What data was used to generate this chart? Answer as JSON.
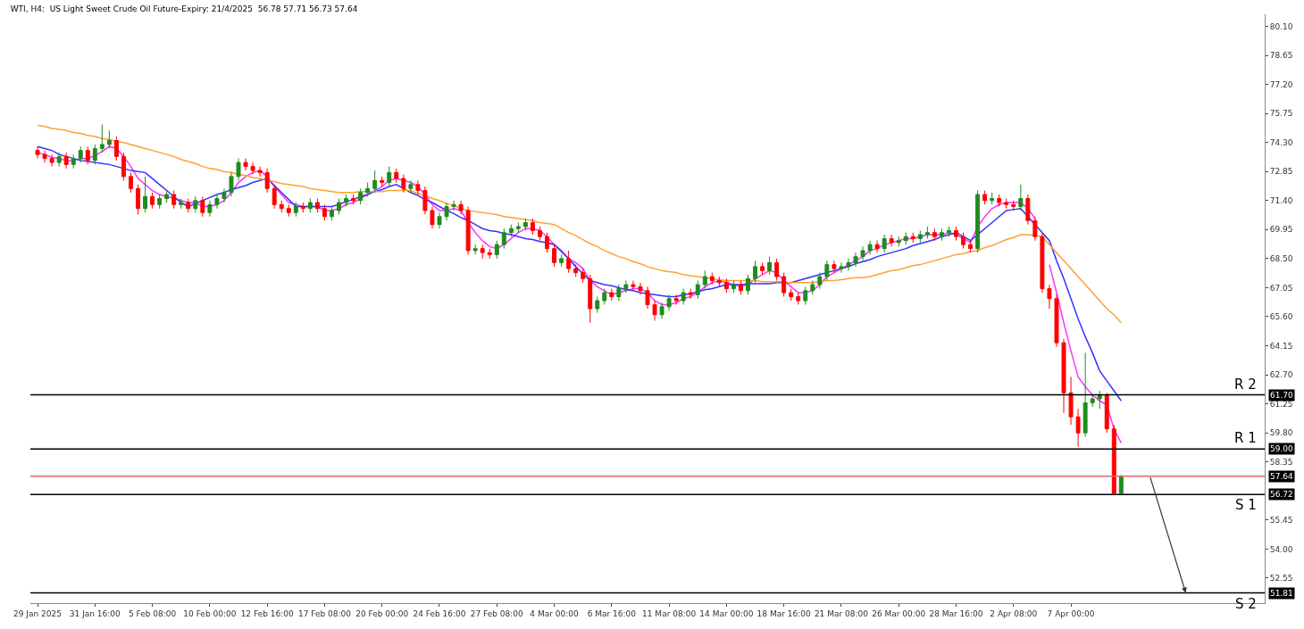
{
  "chart_data": {
    "type": "candlestick",
    "title": "WTI, H4:  US Light Sweet Crude Oil Future-Expiry: 21/4/2025  56.78 57.71 56.73 57.64",
    "categories": [
      "29 Jan 2025",
      null,
      null,
      null,
      null,
      null,
      null,
      null,
      "31 Jan 16:00",
      null,
      null,
      null,
      null,
      null,
      null,
      null,
      "5 Feb 08:00",
      null,
      null,
      null,
      null,
      null,
      null,
      null,
      "10 Feb 00:00",
      null,
      null,
      null,
      null,
      null,
      null,
      null,
      "12 Feb 16:00",
      null,
      null,
      null,
      null,
      null,
      null,
      null,
      "17 Feb 08:00",
      null,
      null,
      null,
      null,
      null,
      null,
      null,
      "20 Feb 00:00",
      null,
      null,
      null,
      null,
      null,
      null,
      null,
      "24 Feb 16:00",
      null,
      null,
      null,
      null,
      null,
      null,
      null,
      "27 Feb 08:00",
      null,
      null,
      null,
      null,
      null,
      null,
      null,
      "4 Mar 00:00",
      null,
      null,
      null,
      null,
      null,
      null,
      null,
      "6 Mar 16:00",
      null,
      null,
      null,
      null,
      null,
      null,
      null,
      "11 Mar 08:00",
      null,
      null,
      null,
      null,
      null,
      null,
      null,
      "14 Mar 00:00",
      null,
      null,
      null,
      null,
      null,
      null,
      null,
      "18 Mar 16:00",
      null,
      null,
      null,
      null,
      null,
      null,
      null,
      "21 Mar 08:00",
      null,
      null,
      null,
      null,
      null,
      null,
      null,
      "26 Mar 00:00",
      null,
      null,
      null,
      null,
      null,
      null,
      null,
      "28 Mar 16:00",
      null,
      null,
      null,
      null,
      null,
      null,
      null,
      "2 Apr 08:00",
      null,
      null,
      null,
      null,
      null,
      null,
      null,
      "7 Apr 00:00",
      null,
      null,
      null,
      null,
      null,
      null,
      null
    ],
    "ohlc": [
      [
        73.9,
        74.1,
        73.5,
        73.7
      ],
      [
        73.7,
        73.9,
        73.3,
        73.5
      ],
      [
        73.5,
        73.7,
        73.1,
        73.3
      ],
      [
        73.3,
        73.8,
        73.1,
        73.6
      ],
      [
        73.6,
        73.8,
        73.0,
        73.2
      ],
      [
        73.2,
        73.7,
        73.0,
        73.5
      ],
      [
        73.5,
        74.1,
        73.3,
        73.9
      ],
      [
        73.9,
        74.1,
        73.2,
        73.4
      ],
      [
        73.4,
        74.2,
        73.2,
        74.0
      ],
      [
        74.0,
        75.2,
        73.8,
        74.2
      ],
      [
        74.2,
        74.9,
        74.0,
        74.4
      ],
      [
        74.4,
        74.6,
        73.4,
        73.6
      ],
      [
        73.6,
        73.8,
        72.4,
        72.6
      ],
      [
        72.6,
        72.8,
        71.8,
        72.0
      ],
      [
        72.0,
        72.2,
        70.7,
        71.0
      ],
      [
        71.0,
        72.6,
        70.8,
        71.6
      ],
      [
        71.6,
        71.8,
        71.0,
        71.2
      ],
      [
        71.2,
        71.7,
        71.0,
        71.5
      ],
      [
        71.5,
        71.9,
        71.3,
        71.7
      ],
      [
        71.7,
        71.9,
        71.0,
        71.2
      ],
      [
        71.2,
        71.5,
        71.0,
        71.3
      ],
      [
        71.3,
        71.5,
        70.8,
        71.0
      ],
      [
        71.0,
        71.6,
        70.8,
        71.4
      ],
      [
        71.4,
        71.6,
        70.6,
        70.8
      ],
      [
        70.8,
        71.4,
        70.6,
        71.2
      ],
      [
        71.2,
        71.7,
        71.0,
        71.5
      ],
      [
        71.5,
        72.0,
        71.3,
        71.8
      ],
      [
        71.8,
        72.8,
        71.6,
        72.6
      ],
      [
        72.6,
        73.5,
        72.4,
        73.3
      ],
      [
        73.3,
        73.5,
        72.9,
        73.1
      ],
      [
        73.1,
        73.3,
        72.7,
        72.9
      ],
      [
        72.9,
        73.1,
        72.6,
        72.8
      ],
      [
        72.8,
        73.0,
        71.8,
        72.0
      ],
      [
        72.0,
        72.2,
        71.0,
        71.2
      ],
      [
        71.2,
        71.4,
        70.8,
        71.0
      ],
      [
        71.0,
        71.2,
        70.6,
        70.8
      ],
      [
        70.8,
        71.3,
        70.6,
        71.1
      ],
      [
        71.1,
        71.3,
        70.8,
        71.0
      ],
      [
        71.0,
        71.5,
        70.8,
        71.3
      ],
      [
        71.3,
        71.5,
        70.8,
        71.0
      ],
      [
        71.0,
        71.2,
        70.4,
        70.6
      ],
      [
        70.6,
        71.1,
        70.4,
        70.9
      ],
      [
        70.9,
        71.5,
        70.7,
        71.3
      ],
      [
        71.3,
        71.7,
        71.1,
        71.5
      ],
      [
        71.5,
        71.7,
        71.2,
        71.4
      ],
      [
        71.4,
        72.0,
        71.2,
        71.8
      ],
      [
        71.8,
        72.3,
        71.6,
        72.0
      ],
      [
        72.0,
        72.9,
        71.8,
        72.4
      ],
      [
        72.4,
        72.6,
        72.1,
        72.3
      ],
      [
        72.3,
        73.1,
        72.1,
        72.8
      ],
      [
        72.8,
        73.0,
        72.3,
        72.5
      ],
      [
        72.5,
        72.7,
        71.8,
        72.0
      ],
      [
        72.0,
        72.4,
        71.8,
        72.2
      ],
      [
        72.2,
        72.4,
        71.7,
        71.9
      ],
      [
        71.9,
        72.1,
        70.7,
        70.9
      ],
      [
        70.9,
        71.1,
        70.0,
        70.2
      ],
      [
        70.2,
        70.8,
        70.0,
        70.6
      ],
      [
        70.6,
        71.3,
        70.4,
        71.1
      ],
      [
        71.1,
        71.4,
        70.9,
        71.2
      ],
      [
        71.2,
        71.4,
        70.7,
        70.9
      ],
      [
        70.9,
        71.1,
        68.7,
        68.9
      ],
      [
        68.9,
        69.2,
        68.7,
        69.0
      ],
      [
        69.0,
        69.2,
        68.5,
        68.8
      ],
      [
        68.8,
        69.0,
        68.5,
        68.7
      ],
      [
        68.7,
        69.4,
        68.5,
        69.2
      ],
      [
        69.2,
        70.0,
        69.0,
        69.8
      ],
      [
        69.8,
        70.2,
        69.6,
        70.0
      ],
      [
        70.0,
        70.3,
        69.8,
        70.1
      ],
      [
        70.1,
        70.5,
        69.9,
        70.3
      ],
      [
        70.3,
        70.5,
        69.7,
        69.9
      ],
      [
        69.9,
        70.1,
        69.4,
        69.6
      ],
      [
        69.6,
        69.8,
        68.8,
        69.0
      ],
      [
        69.0,
        69.2,
        68.1,
        68.3
      ],
      [
        68.3,
        68.7,
        68.1,
        68.5
      ],
      [
        68.5,
        68.9,
        67.8,
        68.0
      ],
      [
        68.0,
        68.2,
        67.6,
        67.8
      ],
      [
        67.8,
        68.0,
        67.3,
        67.5
      ],
      [
        67.5,
        67.7,
        65.3,
        66.0
      ],
      [
        66.0,
        66.6,
        65.8,
        66.4
      ],
      [
        66.4,
        67.0,
        66.2,
        66.8
      ],
      [
        66.8,
        67.0,
        66.4,
        66.6
      ],
      [
        66.6,
        67.2,
        66.4,
        67.0
      ],
      [
        67.0,
        67.4,
        66.8,
        67.2
      ],
      [
        67.2,
        67.4,
        66.9,
        67.1
      ],
      [
        67.1,
        67.3,
        66.7,
        66.9
      ],
      [
        66.9,
        67.1,
        66.0,
        66.2
      ],
      [
        66.2,
        66.4,
        65.4,
        65.7
      ],
      [
        65.7,
        66.3,
        65.5,
        66.1
      ],
      [
        66.1,
        66.7,
        65.9,
        66.5
      ],
      [
        66.5,
        66.7,
        66.2,
        66.4
      ],
      [
        66.4,
        67.0,
        66.2,
        66.8
      ],
      [
        66.8,
        67.0,
        66.5,
        66.7
      ],
      [
        66.7,
        67.4,
        66.5,
        67.2
      ],
      [
        67.2,
        67.9,
        67.0,
        67.6
      ],
      [
        67.6,
        67.8,
        67.2,
        67.4
      ],
      [
        67.4,
        67.6,
        67.1,
        67.3
      ],
      [
        67.3,
        67.5,
        66.8,
        67.0
      ],
      [
        67.0,
        67.4,
        66.8,
        67.2
      ],
      [
        67.2,
        67.4,
        66.7,
        66.9
      ],
      [
        66.9,
        67.7,
        66.7,
        67.5
      ],
      [
        67.5,
        68.4,
        67.3,
        68.1
      ],
      [
        68.1,
        68.3,
        67.7,
        67.9
      ],
      [
        67.9,
        68.6,
        67.7,
        68.3
      ],
      [
        68.3,
        68.5,
        67.4,
        67.6
      ],
      [
        67.6,
        67.8,
        66.6,
        66.8
      ],
      [
        66.8,
        67.0,
        66.4,
        66.6
      ],
      [
        66.6,
        66.8,
        66.2,
        66.4
      ],
      [
        66.4,
        67.1,
        66.2,
        66.9
      ],
      [
        66.9,
        67.4,
        66.7,
        67.2
      ],
      [
        67.2,
        67.8,
        67.0,
        67.6
      ],
      [
        67.6,
        68.4,
        67.4,
        68.2
      ],
      [
        68.2,
        68.4,
        67.8,
        68.0
      ],
      [
        68.0,
        68.3,
        67.8,
        68.1
      ],
      [
        68.1,
        68.5,
        67.9,
        68.3
      ],
      [
        68.3,
        68.8,
        68.1,
        68.6
      ],
      [
        68.6,
        69.1,
        68.4,
        68.9
      ],
      [
        68.9,
        69.4,
        68.7,
        69.2
      ],
      [
        69.2,
        69.4,
        68.8,
        69.0
      ],
      [
        69.0,
        69.7,
        68.8,
        69.5
      ],
      [
        69.5,
        69.7,
        69.1,
        69.3
      ],
      [
        69.3,
        69.6,
        69.1,
        69.4
      ],
      [
        69.4,
        69.8,
        69.2,
        69.6
      ],
      [
        69.6,
        69.8,
        69.3,
        69.5
      ],
      [
        69.5,
        69.9,
        69.3,
        69.7
      ],
      [
        69.7,
        70.1,
        69.5,
        69.8
      ],
      [
        69.8,
        70.0,
        69.4,
        69.6
      ],
      [
        69.6,
        70.0,
        69.4,
        69.8
      ],
      [
        69.8,
        70.1,
        69.6,
        69.9
      ],
      [
        69.9,
        70.1,
        69.4,
        69.6
      ],
      [
        69.6,
        69.8,
        69.0,
        69.2
      ],
      [
        69.2,
        69.4,
        68.8,
        69.0
      ],
      [
        69.0,
        71.9,
        68.8,
        71.7
      ],
      [
        71.7,
        71.9,
        71.2,
        71.4
      ],
      [
        71.4,
        71.8,
        71.2,
        71.5
      ],
      [
        71.5,
        71.7,
        71.1,
        71.3
      ],
      [
        71.3,
        71.5,
        71.0,
        71.2
      ],
      [
        71.2,
        71.4,
        70.9,
        71.1
      ],
      [
        71.1,
        72.2,
        70.9,
        71.5
      ],
      [
        71.5,
        71.7,
        70.2,
        70.4
      ],
      [
        70.4,
        70.6,
        69.4,
        69.6
      ],
      [
        69.6,
        69.8,
        66.8,
        67.0
      ],
      [
        67.0,
        67.2,
        66.0,
        66.5
      ],
      [
        66.5,
        66.7,
        64.1,
        64.3
      ],
      [
        64.3,
        64.5,
        60.8,
        61.8
      ],
      [
        61.8,
        62.6,
        60.2,
        60.6
      ],
      [
        60.6,
        61.0,
        59.1,
        59.8
      ],
      [
        59.8,
        63.8,
        59.6,
        61.3
      ],
      [
        61.3,
        61.7,
        61.1,
        61.5
      ],
      [
        61.5,
        61.9,
        61.0,
        61.7
      ],
      [
        61.7,
        61.8,
        59.8,
        60.0
      ],
      [
        60.0,
        60.2,
        56.7,
        56.78
      ],
      [
        56.78,
        57.71,
        56.73,
        57.64
      ]
    ],
    "series": [
      {
        "type": "line",
        "color": "#ff33ff",
        "values": [
          73.8,
          73.7,
          73.55,
          73.5,
          73.4,
          73.4,
          73.5,
          73.5,
          73.65,
          73.85,
          74.1,
          74.0,
          73.6,
          73.1,
          72.5,
          72.2,
          71.9,
          71.7,
          71.6,
          71.5,
          71.4,
          71.3,
          71.3,
          71.1,
          71.1,
          71.2,
          71.4,
          71.8,
          72.3,
          72.6,
          72.8,
          72.9,
          72.6,
          72.1,
          71.7,
          71.3,
          71.2,
          71.1,
          71.1,
          71.1,
          70.9,
          70.9,
          71.0,
          71.2,
          71.3,
          71.5,
          71.7,
          71.9,
          72.1,
          72.4,
          72.5,
          72.4,
          72.3,
          72.1,
          71.7,
          71.2,
          70.9,
          70.9,
          71.0,
          70.9,
          70.3,
          69.8,
          69.4,
          69.1,
          69.0,
          69.2,
          69.5,
          69.8,
          70.0,
          70.0,
          69.9,
          69.6,
          69.2,
          68.9,
          68.5,
          68.3,
          68.0,
          67.4,
          67.1,
          66.9,
          66.7,
          66.8,
          66.9,
          67.0,
          67.0,
          66.8,
          66.4,
          66.2,
          66.2,
          66.3,
          66.5,
          66.6,
          66.8,
          67.1,
          67.3,
          67.4,
          67.3,
          67.2,
          67.1,
          67.2,
          67.5,
          67.7,
          67.9,
          67.8,
          67.4,
          67.1,
          66.8,
          66.8,
          66.9,
          67.2,
          67.6,
          67.8,
          68.0,
          68.2,
          68.4,
          68.6,
          68.9,
          69.0,
          69.2,
          69.3,
          69.4,
          69.5,
          69.5,
          69.6,
          69.7,
          69.7,
          69.7,
          69.8,
          69.7,
          69.5,
          69.3,
          70.1,
          70.6,
          71.0,
          71.2,
          71.3,
          71.3,
          71.3,
          71.0,
          70.5,
          null,
          68.2,
          66.8,
          65.3,
          63.9,
          62.6,
          62.1,
          61.7,
          61.4,
          61.2,
          60.0,
          59.3
        ]
      },
      {
        "type": "line",
        "color": "#3333ff",
        "values": [
          74.1,
          74.0,
          73.9,
          73.7,
          73.6,
          73.5,
          73.4,
          73.35,
          73.3,
          73.25,
          73.2,
          73.1,
          73.0,
          72.9,
          72.85,
          72.8,
          72.5,
          72.2,
          71.9,
          71.6,
          71.3,
          71.1,
          71.25,
          71.4,
          71.55,
          71.7,
          71.8,
          71.95,
          72.05,
          72.15,
          72.3,
          72.4,
          72.5,
          72.15,
          71.8,
          71.45,
          71.1,
          71.1,
          71.1,
          71.1,
          71.1,
          71.1,
          71.2,
          71.35,
          71.45,
          71.6,
          71.7,
          71.85,
          71.95,
          72.1,
          72.2,
          72.0,
          71.8,
          71.65,
          71.45,
          71.3,
          71.1,
          70.9,
          70.75,
          70.55,
          70.4,
          70.2,
          70.0,
          69.9,
          69.85,
          69.75,
          69.7,
          69.6,
          69.5,
          69.45,
          69.35,
          69.3,
          69.2,
          68.85,
          68.5,
          68.1,
          67.75,
          67.4,
          67.3,
          67.2,
          67.15,
          67.05,
          66.95,
          66.9,
          66.8,
          66.75,
          66.7,
          66.65,
          66.6,
          66.6,
          66.7,
          66.75,
          66.85,
          66.95,
          67.0,
          67.1,
          67.2,
          67.2,
          67.2,
          67.25,
          67.25,
          67.25,
          67.25,
          67.3,
          67.3,
          67.3,
          67.4,
          67.5,
          67.6,
          67.7,
          67.8,
          67.9,
          68.0,
          68.1,
          68.25,
          68.35,
          68.45,
          68.6,
          68.7,
          68.8,
          68.9,
          69.0,
          69.15,
          69.25,
          69.35,
          69.45,
          69.6,
          69.7,
          69.8,
          69.6,
          69.4,
          69.7,
          70.0,
          70.3,
          70.6,
          70.9,
          70.95,
          71.0,
          70.6,
          70.2,
          69.8,
          69.4,
          68.4,
          67.5,
          66.5,
          65.5,
          64.6,
          63.8,
          62.9,
          62.4,
          61.9,
          61.4
        ]
      },
      {
        "type": "line",
        "color": "#ffa033",
        "values": [
          75.16,
          75.1,
          75.0,
          74.95,
          74.9,
          74.8,
          74.75,
          74.65,
          74.6,
          74.5,
          74.45,
          74.35,
          74.3,
          74.2,
          74.1,
          74.0,
          73.9,
          73.8,
          73.7,
          73.6,
          73.45,
          73.35,
          73.25,
          73.1,
          73.0,
          72.95,
          72.85,
          72.8,
          72.7,
          72.65,
          72.55,
          72.5,
          72.4,
          72.35,
          72.25,
          72.2,
          72.15,
          72.1,
          72.0,
          71.95,
          71.9,
          71.85,
          71.8,
          71.8,
          71.8,
          71.85,
          71.85,
          71.85,
          71.85,
          71.9,
          71.9,
          71.9,
          71.9,
          71.75,
          71.65,
          71.5,
          71.4,
          71.25,
          71.15,
          71.0,
          70.9,
          70.85,
          70.8,
          70.75,
          70.7,
          70.6,
          70.55,
          70.5,
          70.45,
          70.4,
          70.3,
          70.25,
          70.2,
          70.0,
          69.8,
          69.65,
          69.45,
          69.25,
          69.1,
          68.9,
          68.75,
          68.6,
          68.5,
          68.35,
          68.25,
          68.1,
          68.0,
          67.9,
          67.85,
          67.8,
          67.7,
          67.65,
          67.6,
          67.55,
          67.5,
          67.45,
          67.4,
          67.4,
          67.4,
          67.4,
          67.4,
          67.35,
          67.35,
          67.35,
          67.35,
          67.3,
          67.3,
          67.3,
          67.3,
          67.35,
          67.4,
          67.4,
          67.45,
          67.5,
          67.55,
          67.55,
          67.6,
          67.7,
          67.8,
          67.9,
          67.95,
          68.05,
          68.15,
          68.2,
          68.3,
          68.4,
          68.5,
          68.6,
          68.7,
          68.75,
          68.85,
          68.9,
          69.05,
          69.15,
          69.3,
          69.45,
          69.55,
          69.7,
          69.7,
          69.65,
          69.6,
          69.2,
          68.8,
          68.4,
          68.0,
          67.6,
          67.2,
          66.8,
          66.4,
          66.0,
          65.7,
          65.3
        ]
      }
    ],
    "ylim": [
      51.3,
      80.7
    ],
    "yticks": [
      {
        "value": 80.1,
        "label": "80.10"
      },
      78.65,
      {
        "value": 77.2,
        "label": "77.20"
      },
      75.75,
      {
        "value": 74.3,
        "label": "74.30"
      },
      72.85,
      {
        "value": 71.4,
        "label": "71.40"
      },
      69.95,
      {
        "value": 68.5,
        "label": "68.50"
      },
      67.05,
      {
        "value": 65.6,
        "label": "65.60"
      },
      64.15,
      {
        "value": 62.7,
        "label": "62.70"
      },
      {
        "value": 61.7,
        "label": "61.70"
      },
      61.25,
      {
        "value": 59.8,
        "label": "59.80"
      },
      {
        "value": 59.0,
        "label": "59.00"
      },
      58.35,
      {
        "value": 57.64,
        "label": "57.64"
      },
      {
        "value": 56.72,
        "label": "56.72"
      },
      55.45,
      {
        "value": 54.0,
        "label": "54.00"
      },
      52.55,
      {
        "value": 51.81,
        "label": "51.81"
      }
    ],
    "ref_lines": [
      {
        "axis": "y",
        "value": 61.7,
        "label": "R 2",
        "color": "#000000"
      },
      {
        "axis": "y",
        "value": 59.0,
        "label": "R 1",
        "color": "#000000"
      },
      {
        "axis": "y",
        "value": 57.64,
        "label": null,
        "color": "#e06666"
      },
      {
        "axis": "y",
        "value": 56.72,
        "label": "S 1",
        "color": "#000000"
      },
      {
        "axis": "y",
        "value": 51.81,
        "label": "S 2",
        "color": "#000000"
      }
    ]
  }
}
